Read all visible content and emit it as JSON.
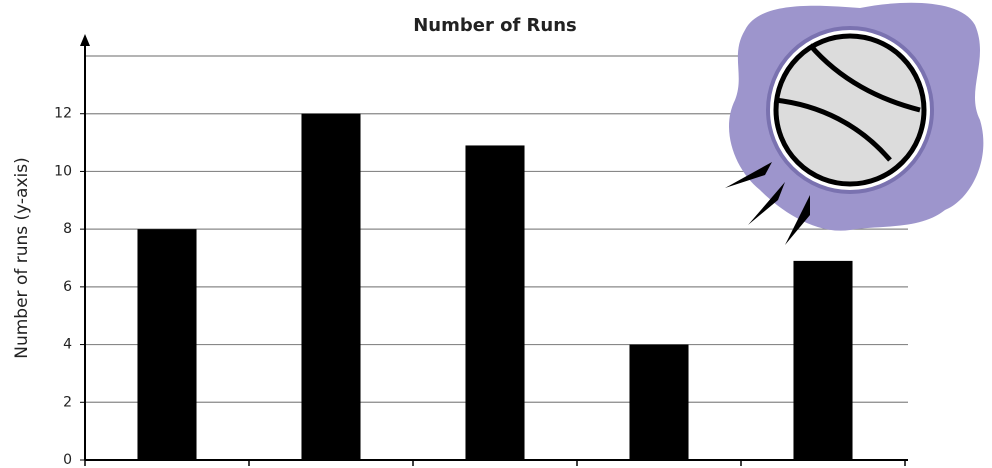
{
  "chart_data": {
    "type": "bar",
    "title": "Number of Runs",
    "y_label": "Number of runs (y-axis)",
    "categories": [
      null,
      null,
      null,
      null,
      null
    ],
    "values": [
      8,
      12,
      10.9,
      4,
      6.9
    ],
    "color": "#000000",
    "ylim": [
      0,
      14
    ],
    "yticks": [
      0,
      2,
      4,
      6,
      8,
      10,
      12
    ],
    "grid": true
  }
}
